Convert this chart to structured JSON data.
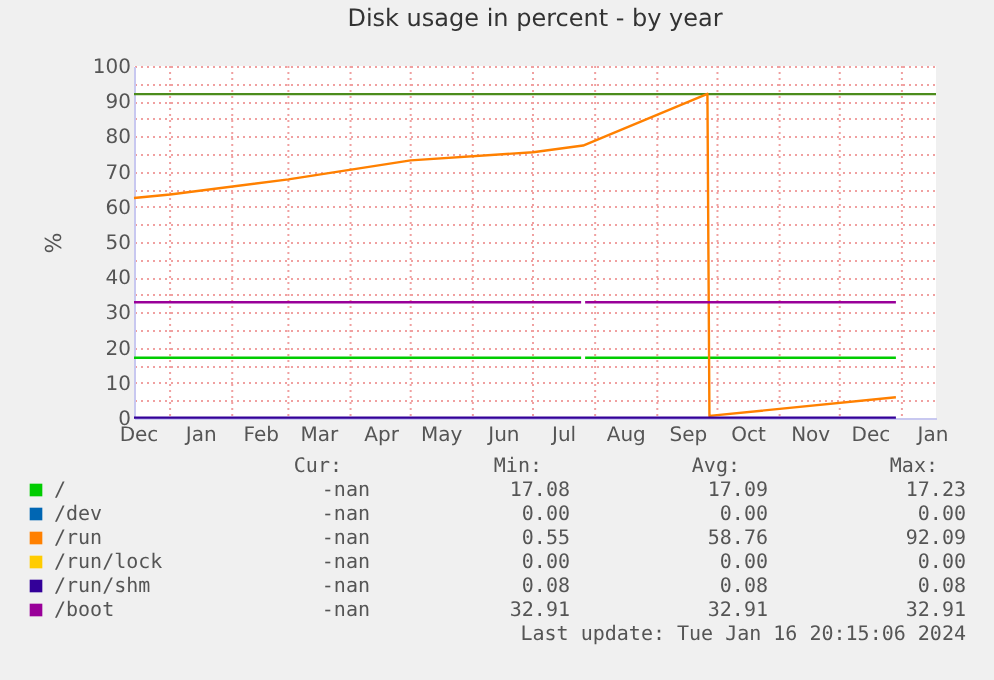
{
  "chart_data": {
    "type": "line",
    "title": "Disk usage in percent - by year",
    "ylabel": "%",
    "xlim": [
      "2022-12-14",
      "2024-01-18"
    ],
    "xticks": [
      {
        "value": "2022-12-16",
        "label": "Dec"
      },
      {
        "value": "2023-01-01",
        "label": null
      },
      {
        "value": "2023-01-16",
        "label": "Jan"
      },
      {
        "value": "2023-02-01",
        "label": null
      },
      {
        "value": "2023-02-15",
        "label": "Feb"
      },
      {
        "value": "2023-03-01",
        "label": null
      },
      {
        "value": "2023-03-16",
        "label": "Mar"
      },
      {
        "value": "2023-04-01",
        "label": null
      },
      {
        "value": "2023-04-16",
        "label": "Apr"
      },
      {
        "value": "2023-05-01",
        "label": null
      },
      {
        "value": "2023-05-16",
        "label": "May"
      },
      {
        "value": "2023-06-01",
        "label": null
      },
      {
        "value": "2023-06-16",
        "label": "Jun"
      },
      {
        "value": "2023-07-01",
        "label": null
      },
      {
        "value": "2023-07-16",
        "label": "Jul"
      },
      {
        "value": "2023-08-01",
        "label": null
      },
      {
        "value": "2023-08-16",
        "label": "Aug"
      },
      {
        "value": "2023-09-01",
        "label": null
      },
      {
        "value": "2023-09-16",
        "label": "Sep"
      },
      {
        "value": "2023-10-01",
        "label": null
      },
      {
        "value": "2023-10-16",
        "label": "Oct"
      },
      {
        "value": "2023-11-01",
        "label": null
      },
      {
        "value": "2023-11-16",
        "label": "Nov"
      },
      {
        "value": "2023-12-01",
        "label": null
      },
      {
        "value": "2023-12-16",
        "label": "Dec"
      },
      {
        "value": "2024-01-01",
        "label": null
      },
      {
        "value": "2024-01-16",
        "label": "Jan"
      }
    ],
    "ylim": [
      0,
      100
    ],
    "yticks": [
      0,
      {
        "value": 5,
        "label": null
      },
      10,
      {
        "value": 15,
        "label": null
      },
      20,
      {
        "value": 25,
        "label": null
      },
      30,
      {
        "value": 35,
        "label": null
      },
      40,
      {
        "value": 45,
        "label": null
      },
      50,
      {
        "value": 55,
        "label": null
      },
      60,
      {
        "value": 65,
        "label": null
      },
      70,
      {
        "value": 75,
        "label": null
      },
      80,
      {
        "value": 85,
        "label": null
      },
      90,
      {
        "value": 95,
        "label": null
      },
      100
    ],
    "grid": true,
    "legend": "bottom",
    "line_style": "solid",
    "ref_lines": [
      {
        "axis": "y",
        "value": 92,
        "color": "#4c8c1c"
      }
    ],
    "series": [
      {
        "name": "/",
        "color": "#00cc00",
        "x": [
          "2022-12-14",
          "2023-07-25",
          "2023-07-26",
          "2023-07-27",
          "2023-12-29"
        ],
        "values": [
          17.1,
          17.1,
          null,
          17.1,
          17.1
        ]
      },
      {
        "name": "/dev",
        "color": "#0066b3"
      },
      {
        "name": "/run",
        "color": "#ff8000",
        "x": [
          "2022-12-14",
          "2023-01-01",
          "2023-03-01",
          "2023-05-01",
          "2023-07-01",
          "2023-07-26",
          "2023-09-26",
          "2023-09-27",
          "2023-12-29"
        ],
        "values": [
          62.5,
          63.5,
          67.8,
          73.2,
          75.5,
          77.4,
          92.1,
          0.6,
          5.9
        ]
      },
      {
        "name": "/run/lock",
        "color": "#ffcc00"
      },
      {
        "name": "/run/shm",
        "color": "#330099",
        "x": [
          "2022-12-14",
          "2023-12-29"
        ],
        "values": [
          0.1,
          0.1
        ]
      },
      {
        "name": "/boot",
        "color": "#990099",
        "x": [
          "2022-12-14",
          "2023-07-25",
          "2023-07-26",
          "2023-07-27",
          "2023-12-29"
        ],
        "values": [
          32.9,
          32.9,
          null,
          32.9,
          32.9
        ]
      }
    ],
    "annotations": [
      "Cur:",
      "Min:",
      "Avg:",
      "Max:",
      "-nan",
      "17.08",
      "17.09",
      "17.23",
      "-nan",
      "0.00",
      "0.00",
      "0.00",
      "-nan",
      "0.55",
      "58.76",
      "92.09",
      "-nan",
      "0.00",
      "0.00",
      "0.00",
      "-nan",
      "0.08",
      "0.08",
      "0.08",
      "-nan",
      "32.91",
      "32.91",
      "32.91",
      "Last update:  Tue Jan 16 20:15:06 2024"
    ]
  }
}
